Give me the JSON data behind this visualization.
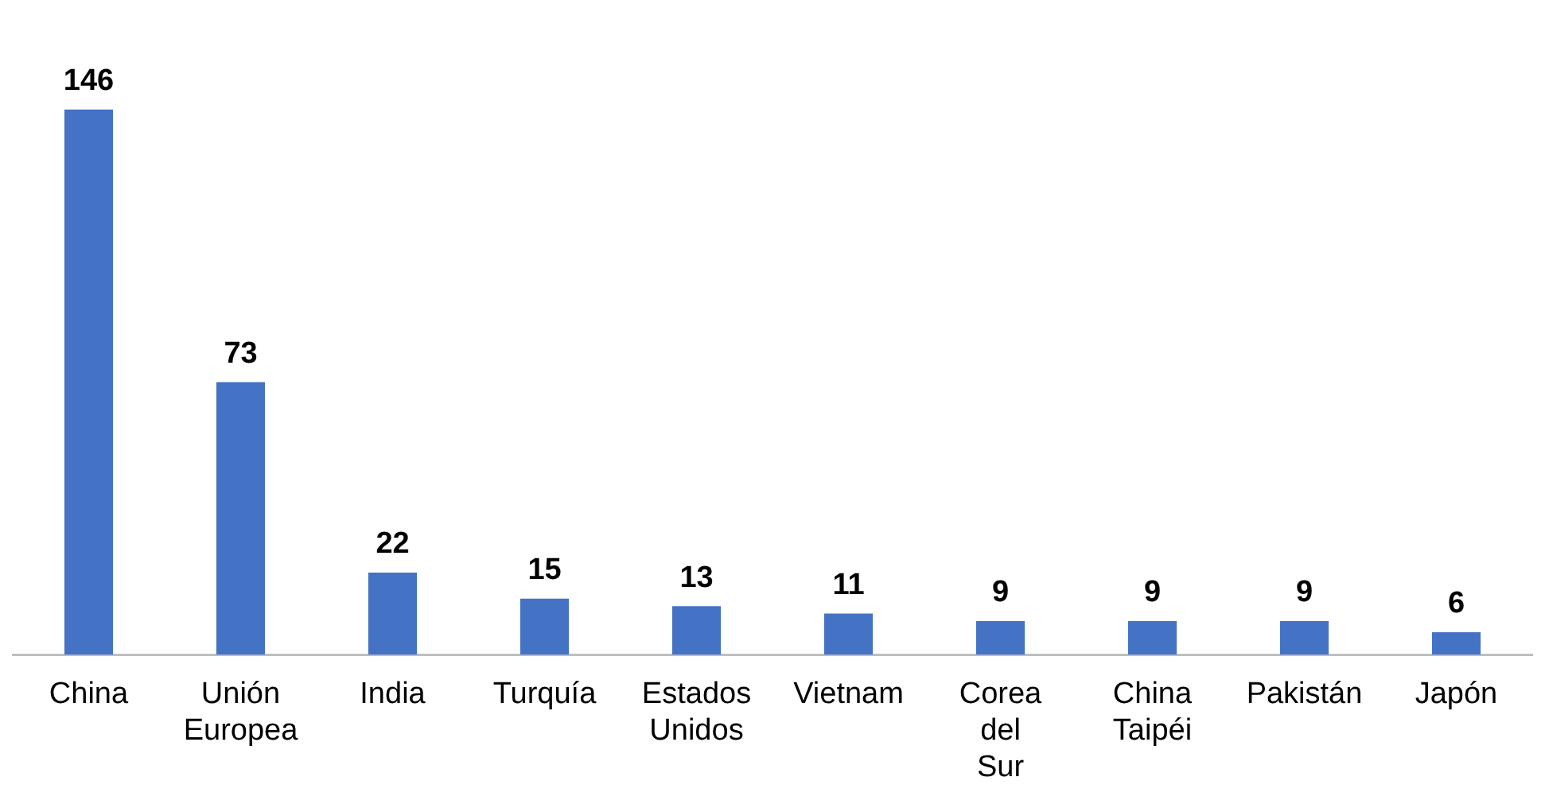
{
  "chart_data": {
    "type": "bar",
    "categories": [
      "China",
      "Unión Europea",
      "India",
      "Turquía",
      "Estados Unidos",
      "Vietnam",
      "Corea del Sur",
      "China Taipéi",
      "Pakistán",
      "Japón"
    ],
    "values": [
      146,
      73,
      22,
      15,
      13,
      11,
      9,
      9,
      9,
      6
    ],
    "color": "#4472c4",
    "data_labels": true,
    "grid": false,
    "legend": false
  }
}
